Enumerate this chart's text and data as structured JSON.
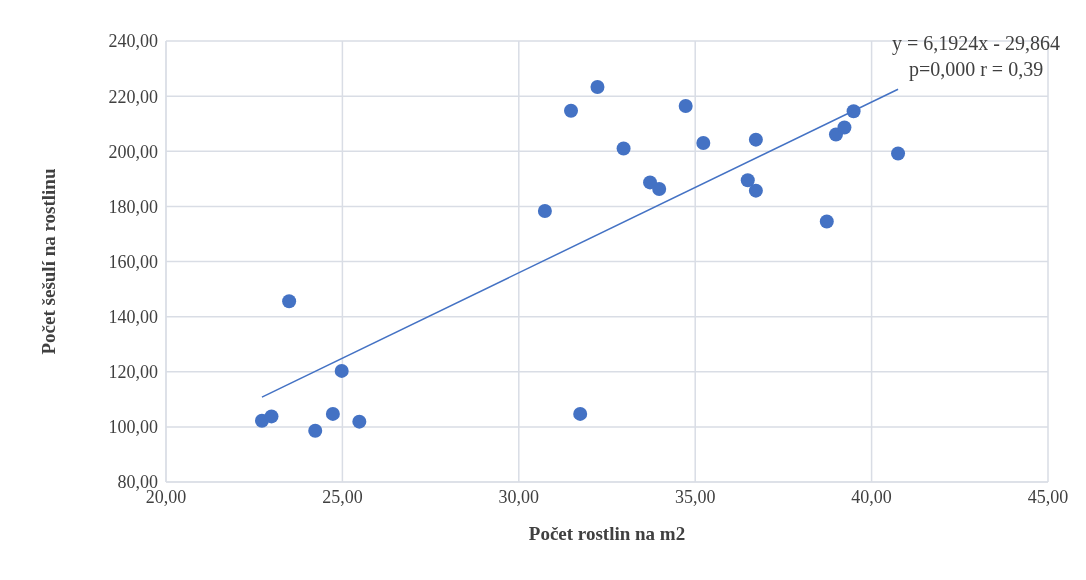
{
  "chart_data": {
    "type": "scatter",
    "xlabel": "Počet rostlin na m2",
    "ylabel": "Počet šešulí na rostlinu",
    "xlim": [
      20,
      45
    ],
    "ylim": [
      80,
      240
    ],
    "xticks": [
      {
        "value": 20,
        "label": "20,00"
      },
      {
        "value": 25,
        "label": "25,00"
      },
      {
        "value": 30,
        "label": "30,00"
      },
      {
        "value": 35,
        "label": "35,00"
      },
      {
        "value": 40,
        "label": "40,00"
      },
      {
        "value": 45,
        "label": "45,00"
      }
    ],
    "yticks": [
      {
        "value": 80,
        "label": "80,00"
      },
      {
        "value": 100,
        "label": "100,00"
      },
      {
        "value": 120,
        "label": "120,00"
      },
      {
        "value": 140,
        "label": "140,00"
      },
      {
        "value": 160,
        "label": "160,00"
      },
      {
        "value": 180,
        "label": "180,00"
      },
      {
        "value": 200,
        "label": "200,00"
      },
      {
        "value": 220,
        "label": "220,00"
      },
      {
        "value": 240,
        "label": "240,00"
      }
    ],
    "grid": true,
    "marker": "circle",
    "series": [
      {
        "color": "#4472c4",
        "x": [
          22.72,
          22.99,
          23.49,
          24.23,
          24.73,
          24.98,
          25.48,
          30.74,
          31.48,
          32.23,
          31.74,
          34.73,
          32.97,
          35.23,
          33.72,
          33.98,
          36.72,
          36.49,
          36.72,
          38.73,
          38.99,
          39.23,
          39.49,
          40.75
        ],
        "values": [
          102.2,
          103.8,
          145.6,
          98.6,
          104.7,
          120.3,
          101.9,
          178.3,
          214.7,
          223.3,
          104.7,
          216.4,
          201.0,
          203.0,
          188.7,
          186.3,
          204.2,
          189.5,
          185.7,
          174.5,
          206.1,
          208.6,
          214.5,
          199.2
        ]
      },
      {
        "type": "line",
        "marker": "none",
        "color": "#4472c4",
        "x": [
          22.72,
          40.75
        ],
        "values": [
          110.8,
          222.5
        ]
      }
    ],
    "annotations": [
      "y = 6,1924x - 29,864",
      "p=0,000 r = 0,39"
    ]
  }
}
